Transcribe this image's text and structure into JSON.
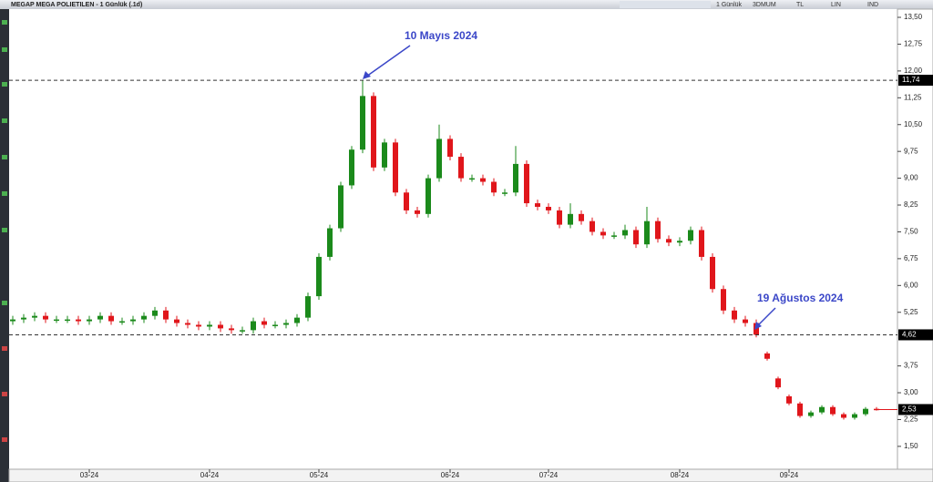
{
  "window_title": "MEGAP MEGA POLIETILEN - 1 Günlük (.1d)",
  "toolbar": [
    "1 Günlük",
    "3DMUM",
    "TL",
    "LIN",
    "IND"
  ],
  "chart_data": {
    "type": "candlestick",
    "up_color": "#1b8a1b",
    "down_color": "#e0161b",
    "categories": [
      null,
      null,
      null,
      null,
      null,
      null,
      null,
      "03-24",
      null,
      null,
      null,
      null,
      null,
      null,
      null,
      null,
      null,
      null,
      "04-24",
      null,
      null,
      null,
      null,
      null,
      null,
      null,
      null,
      null,
      "05-24",
      null,
      null,
      null,
      null,
      null,
      null,
      null,
      null,
      null,
      null,
      null,
      "06-24",
      null,
      null,
      null,
      null,
      null,
      null,
      null,
      null,
      "07-24",
      null,
      null,
      null,
      null,
      null,
      null,
      null,
      null,
      null,
      null,
      null,
      "08-24",
      null,
      null,
      null,
      null,
      null,
      null,
      null,
      null,
      null,
      "09-24",
      null,
      null,
      null,
      null,
      null,
      null,
      null,
      null
    ],
    "open": [
      5.0,
      5.05,
      5.1,
      5.15,
      5.05,
      5.05,
      5.05,
      5.0,
      5.05,
      5.15,
      5.0,
      5.0,
      5.05,
      5.15,
      5.3,
      5.05,
      4.95,
      4.9,
      4.85,
      4.9,
      4.8,
      4.75,
      4.75,
      5.0,
      4.9,
      4.9,
      4.95,
      5.1,
      5.7,
      6.8,
      7.6,
      8.8,
      9.8,
      11.3,
      9.3,
      10.0,
      8.6,
      8.1,
      8.0,
      9.0,
      10.1,
      9.6,
      9.0,
      9.0,
      8.9,
      8.6,
      8.6,
      9.4,
      8.3,
      8.2,
      8.1,
      7.7,
      8.0,
      7.8,
      7.5,
      7.4,
      7.4,
      7.55,
      7.15,
      7.8,
      7.3,
      7.2,
      7.25,
      7.55,
      6.8,
      5.9,
      5.3,
      5.05,
      4.95,
      4.1,
      3.4,
      2.9,
      2.7,
      2.35,
      2.45,
      2.6,
      2.4,
      2.3,
      2.4,
      2.55
    ],
    "high": [
      5.15,
      5.2,
      5.25,
      5.25,
      5.15,
      5.15,
      5.15,
      5.15,
      5.25,
      5.25,
      5.1,
      5.15,
      5.25,
      5.4,
      5.4,
      5.15,
      5.05,
      5.0,
      5.0,
      5.0,
      4.9,
      4.85,
      5.1,
      5.1,
      5.0,
      5.05,
      5.2,
      5.8,
      6.9,
      7.7,
      8.9,
      9.9,
      11.74,
      11.4,
      10.1,
      10.1,
      8.7,
      8.2,
      9.1,
      10.5,
      10.2,
      9.7,
      9.1,
      9.1,
      9.0,
      8.7,
      9.9,
      9.5,
      8.4,
      8.3,
      8.2,
      8.3,
      8.1,
      7.9,
      7.6,
      7.5,
      7.7,
      7.65,
      8.2,
      7.9,
      7.4,
      7.35,
      7.65,
      7.65,
      6.9,
      6.0,
      5.4,
      5.15,
      5.05,
      4.15,
      3.45,
      2.95,
      2.75,
      2.5,
      2.65,
      2.65,
      2.45,
      2.45,
      2.6,
      2.6
    ],
    "low": [
      4.9,
      4.95,
      5.0,
      4.95,
      4.95,
      4.95,
      4.9,
      4.9,
      4.95,
      4.9,
      4.9,
      4.9,
      4.95,
      5.05,
      4.95,
      4.85,
      4.8,
      4.75,
      4.75,
      4.7,
      4.65,
      4.65,
      4.65,
      4.8,
      4.8,
      4.8,
      4.85,
      5.0,
      5.6,
      6.7,
      7.5,
      8.7,
      9.7,
      9.2,
      9.2,
      8.5,
      8.0,
      7.9,
      7.9,
      8.9,
      9.5,
      8.9,
      8.9,
      8.8,
      8.5,
      8.5,
      8.5,
      8.2,
      8.1,
      8.0,
      7.6,
      7.6,
      7.7,
      7.4,
      7.3,
      7.3,
      7.3,
      7.05,
      7.05,
      7.2,
      7.1,
      7.1,
      7.15,
      6.7,
      5.8,
      5.2,
      4.95,
      4.85,
      4.55,
      3.9,
      3.1,
      2.65,
      2.3,
      2.3,
      2.4,
      2.35,
      2.25,
      2.25,
      2.35,
      2.5
    ],
    "close": [
      5.05,
      5.1,
      5.15,
      5.05,
      5.05,
      5.05,
      5.0,
      5.05,
      5.15,
      5.0,
      5.0,
      5.05,
      5.15,
      5.3,
      5.05,
      4.95,
      4.9,
      4.85,
      4.9,
      4.8,
      4.75,
      4.75,
      5.0,
      4.9,
      4.9,
      4.95,
      5.1,
      5.7,
      6.8,
      7.6,
      8.8,
      9.8,
      11.3,
      9.3,
      10.0,
      8.6,
      8.1,
      8.0,
      9.0,
      10.1,
      9.6,
      9.0,
      9.0,
      8.9,
      8.6,
      8.6,
      9.4,
      8.3,
      8.2,
      8.1,
      7.7,
      8.0,
      7.8,
      7.5,
      7.4,
      7.4,
      7.55,
      7.15,
      7.8,
      7.3,
      7.2,
      7.25,
      7.55,
      6.8,
      5.9,
      5.3,
      5.05,
      4.95,
      4.62,
      3.95,
      3.15,
      2.7,
      2.35,
      2.45,
      2.6,
      2.4,
      2.3,
      2.4,
      2.55,
      2.53
    ],
    "ylim": [
      0.86,
      13.73
    ],
    "yticks": [
      {
        "value": 13.5,
        "label": "13,50"
      },
      {
        "value": 12.75,
        "label": "12,75"
      },
      {
        "value": 12,
        "label": "12,00"
      },
      {
        "value": 11.25,
        "label": "11,25"
      },
      {
        "value": 10.5,
        "label": "10,50"
      },
      {
        "value": 9.75,
        "label": "9,75"
      },
      {
        "value": 9,
        "label": "9,00"
      },
      {
        "value": 8.25,
        "label": "8,25"
      },
      {
        "value": 7.5,
        "label": "7,50"
      },
      {
        "value": 6.75,
        "label": "6,75"
      },
      {
        "value": 6,
        "label": "6,00"
      },
      {
        "value": 5.25,
        "label": "5,25"
      },
      {
        "value": 3.75,
        "label": "3,75"
      },
      {
        "value": 3,
        "label": "3,00"
      },
      {
        "value": 2.25,
        "label": "2,25"
      },
      {
        "value": 1.5,
        "label": "1,50"
      }
    ],
    "ref_lines": [
      {
        "value": 11.74,
        "label": "11,74"
      },
      {
        "value": 4.62,
        "label": "4,62"
      }
    ],
    "last_price": {
      "value": 2.53,
      "label": "2,53"
    },
    "annotations": [
      "10 Mayıs 2024",
      "19 Ağustos 2024"
    ]
  }
}
